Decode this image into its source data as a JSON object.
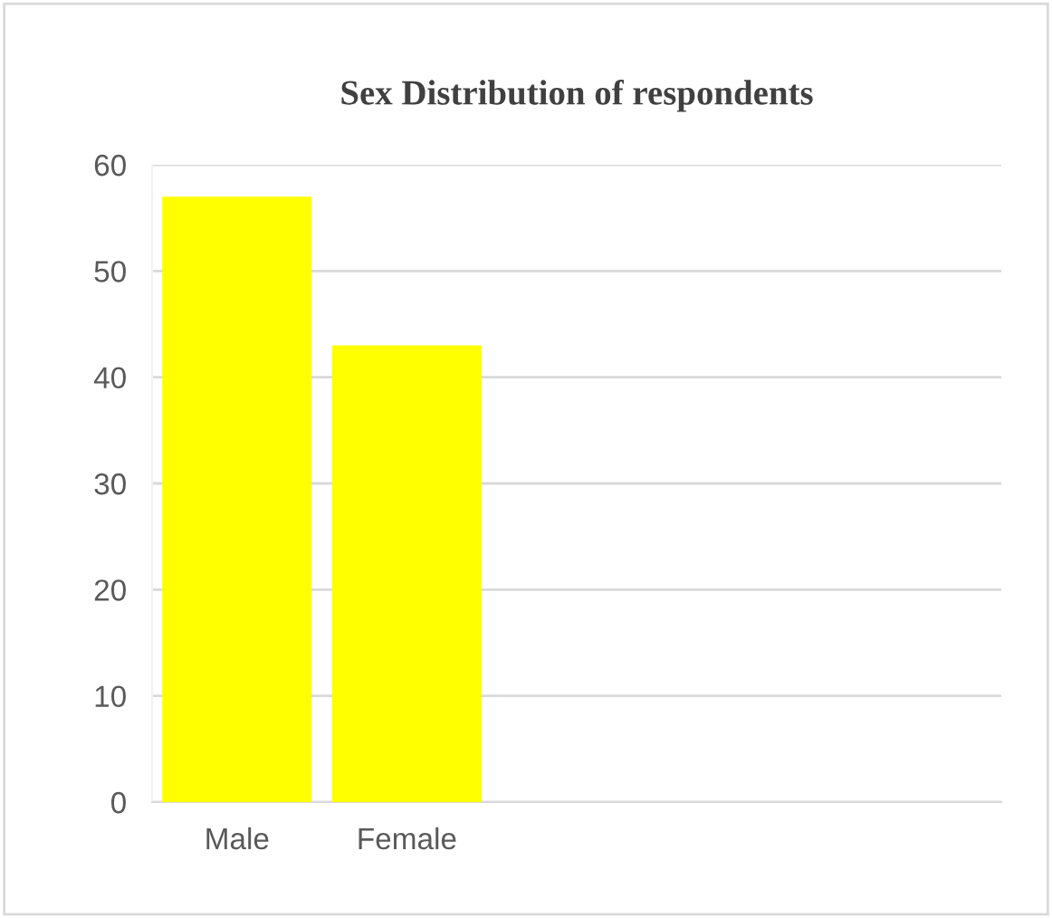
{
  "chart_data": {
    "type": "bar",
    "title": "Sex Distribution of respondents",
    "categories": [
      "Male",
      "Female",
      null,
      null,
      null
    ],
    "values": [
      57,
      43,
      null,
      null,
      null
    ],
    "color": "#ffff00",
    "ylim": [
      0,
      60
    ],
    "yticks": [
      0,
      10,
      20,
      30,
      40,
      50,
      60
    ],
    "grid": "y"
  }
}
